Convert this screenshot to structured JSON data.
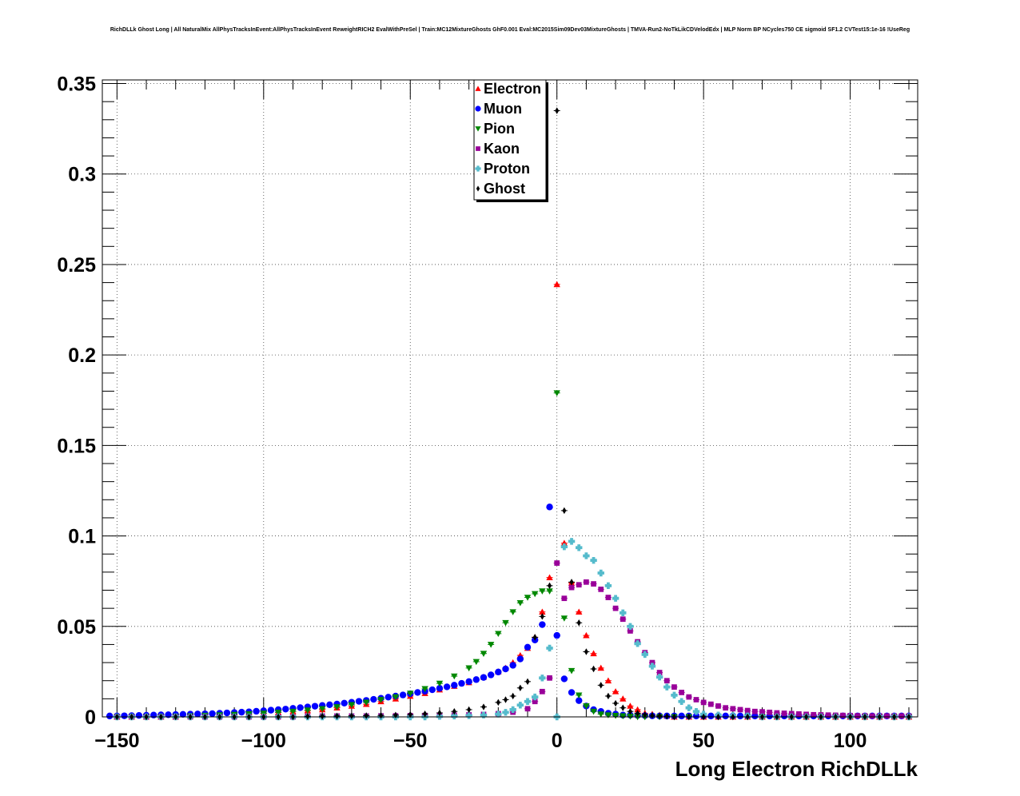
{
  "title": "RichDLLk Ghost Long | All NaturalMix AllPhysTracksInEvent:AllPhysTracksInEvent ReweightRICH2 EvalWithPreSel | Train:MC12MixtureGhosts GhF0.001 Eval:MC2015Sim09Dev03MixtureGhosts | TMVA-Run2-NoTkLikCDVelodEdx | MLP Norm BP NCycles750 CE sigmoid SF1.2 CVTest15:1e-16 !UseReg",
  "chart_data": {
    "type": "scatter",
    "title": "RichDLLk Ghost Long | All NaturalMix AllPhysTracksInEvent:AllPhysTracksInEvent ReweightRICH2 EvalWithPreSel | Train:MC12MixtureGhosts GhF0.001 Eval:MC2015Sim09Dev03MixtureGhosts | TMVA-Run2-NoTkLikCDVelodEdx | MLP Norm BP NCycles750 CE sigmoid SF1.2 CVTest15:1e-16 !UseReg",
    "xlabel": "Long Electron RichDLLk",
    "ylabel": "",
    "xlim": [
      -155,
      123
    ],
    "ylim": [
      0,
      0.352
    ],
    "x_ticks": [
      -150,
      -100,
      -50,
      0,
      50,
      100
    ],
    "x_tick_labels": [
      "−150",
      "−100",
      "−50",
      "0",
      "50",
      "100"
    ],
    "y_ticks": [
      0,
      0.05,
      0.1,
      0.15,
      0.2,
      0.25,
      0.3,
      0.35
    ],
    "y_tick_labels": [
      "0",
      "0.05",
      "0.1",
      "0.15",
      "0.2",
      "0.25",
      "0.3",
      "0.35"
    ],
    "grid": true,
    "legend_position": "top-center",
    "series": [
      {
        "name": "Electron",
        "color": "#ff0000",
        "marker": "triangle-up",
        "x": [
          -150,
          -145,
          -140,
          -135,
          -130,
          -125,
          -120,
          -115,
          -110,
          -105,
          -100,
          -95,
          -90,
          -85,
          -80,
          -75,
          -70,
          -65,
          -60,
          -55,
          -50,
          -45,
          -40,
          -35,
          -30,
          -25,
          -20,
          -17.5,
          -15,
          -12.5,
          -10,
          -7.5,
          -5,
          -2.5,
          0,
          2.5,
          5,
          7.5,
          10,
          12.5,
          15,
          17.5,
          20,
          22.5,
          25,
          27.5,
          30,
          32.5,
          35,
          37.5,
          40,
          45,
          50,
          55,
          60,
          65,
          70,
          75,
          80,
          85,
          90,
          95,
          100,
          105,
          110,
          115,
          120
        ],
        "y": [
          0,
          0,
          0,
          0,
          0,
          0.0005,
          0.0008,
          0.001,
          0.0012,
          0.0015,
          0.002,
          0.0025,
          0.003,
          0.0035,
          0.004,
          0.005,
          0.006,
          0.007,
          0.0085,
          0.01,
          0.0115,
          0.013,
          0.015,
          0.017,
          0.019,
          0.022,
          0.025,
          0.027,
          0.03,
          0.034,
          0.038,
          0.044,
          0.058,
          0.077,
          0.239,
          0.096,
          0.074,
          0.058,
          0.045,
          0.035,
          0.027,
          0.02,
          0.014,
          0.01,
          0.006,
          0.004,
          0.002,
          0.0015,
          0.001,
          0.0005,
          0,
          0,
          0,
          0,
          0,
          0,
          0,
          0,
          0,
          0,
          0,
          0,
          0,
          0,
          0,
          0,
          0
        ]
      },
      {
        "name": "Muon",
        "color": "#0000ff",
        "marker": "circle",
        "x": [
          -152.5,
          -150,
          -147.5,
          -145,
          -142.5,
          -140,
          -137.5,
          -135,
          -132.5,
          -130,
          -127.5,
          -125,
          -122.5,
          -120,
          -117.5,
          -115,
          -112.5,
          -110,
          -107.5,
          -105,
          -102.5,
          -100,
          -97.5,
          -95,
          -92.5,
          -90,
          -87.5,
          -85,
          -82.5,
          -80,
          -77.5,
          -75,
          -72.5,
          -70,
          -67.5,
          -65,
          -62.5,
          -60,
          -57.5,
          -55,
          -52.5,
          -50,
          -47.5,
          -45,
          -42.5,
          -40,
          -37.5,
          -35,
          -32.5,
          -30,
          -27.5,
          -25,
          -22.5,
          -20,
          -17.5,
          -15,
          -12.5,
          -10,
          -7.5,
          -5,
          -2.5,
          0,
          2.5,
          5,
          7.5,
          10,
          12.5,
          15,
          17.5,
          20,
          22.5,
          25,
          27.5,
          30,
          32.5,
          35,
          37.5,
          40,
          42.5,
          45,
          47.5,
          50,
          52.5,
          55,
          57.5,
          60,
          62.5,
          65,
          67.5,
          70,
          72.5,
          75,
          77.5,
          80,
          82.5,
          85,
          87.5,
          90,
          92.5,
          95,
          97.5,
          100,
          102.5,
          105,
          107.5,
          110,
          112.5,
          115,
          117.5,
          120
        ],
        "y": [
          0.0005,
          0.0005,
          0.0006,
          0.0007,
          0.0008,
          0.0009,
          0.001,
          0.0011,
          0.0012,
          0.0013,
          0.0014,
          0.0015,
          0.0016,
          0.0017,
          0.0018,
          0.002,
          0.0022,
          0.0024,
          0.0026,
          0.0028,
          0.0031,
          0.0034,
          0.0037,
          0.004,
          0.0043,
          0.0047,
          0.0051,
          0.0055,
          0.0059,
          0.0063,
          0.0067,
          0.0071,
          0.0076,
          0.0081,
          0.0086,
          0.0091,
          0.0097,
          0.0103,
          0.0109,
          0.0115,
          0.0121,
          0.0128,
          0.0135,
          0.0142,
          0.015,
          0.0158,
          0.0166,
          0.0175,
          0.0185,
          0.0195,
          0.0206,
          0.0218,
          0.0232,
          0.0248,
          0.0265,
          0.0285,
          0.032,
          0.0385,
          0.0425,
          0.051,
          0.116,
          0.045,
          0.021,
          0.0135,
          0.009,
          0.006,
          0.004,
          0.003,
          0.002,
          0.0015,
          0.001,
          0.001,
          0.0008,
          0.0007,
          0.0006,
          0.0005,
          0.0005,
          0.0005,
          0.0005,
          0.0005,
          0.0005,
          0.0005,
          0.0005,
          0.0005,
          0.0005,
          0.0005,
          0.0005,
          0.0005,
          0.0005,
          0.0005,
          0.0005,
          0.0005,
          0.0005,
          0.0005,
          0.0005,
          0.0005,
          0.0005,
          0.0005,
          0.0005,
          0.0005,
          0.0005,
          0.0005,
          0.0005,
          0.0005,
          0.0005,
          0.0005,
          0.0005,
          0.0005,
          0.0005,
          0.0005
        ]
      },
      {
        "name": "Pion",
        "color": "#008800",
        "marker": "triangle-down",
        "x": [
          -150,
          -145,
          -140,
          -135,
          -130,
          -125,
          -120,
          -115,
          -110,
          -105,
          -100,
          -95,
          -90,
          -85,
          -80,
          -75,
          -70,
          -65,
          -60,
          -55,
          -50,
          -45,
          -40,
          -35,
          -30,
          -27.5,
          -25,
          -22.5,
          -20,
          -17.5,
          -15,
          -12.5,
          -10,
          -7.5,
          -5,
          -2.5,
          0,
          2.5,
          5,
          7.5,
          10,
          12.5,
          15,
          17.5,
          20,
          22.5,
          25,
          27.5,
          30,
          35,
          40,
          45,
          50,
          55,
          60,
          65,
          70,
          75,
          80,
          85,
          90,
          95,
          100,
          105,
          110,
          115,
          120
        ],
        "y": [
          0,
          0,
          0,
          0,
          0.0003,
          0.0005,
          0.0008,
          0.001,
          0.0013,
          0.0016,
          0.002,
          0.0025,
          0.003,
          0.0037,
          0.0045,
          0.0055,
          0.0067,
          0.008,
          0.0095,
          0.011,
          0.013,
          0.0155,
          0.0185,
          0.0225,
          0.027,
          0.0305,
          0.035,
          0.04,
          0.046,
          0.052,
          0.058,
          0.063,
          0.066,
          0.068,
          0.0695,
          0.0695,
          0.179,
          0.0545,
          0.0255,
          0.012,
          0.006,
          0.003,
          0.0015,
          0.001,
          0.0007,
          0.0005,
          0.0003,
          0,
          0,
          0,
          0,
          0,
          0,
          0,
          0,
          0,
          0,
          0,
          0,
          0,
          0,
          0,
          0,
          0,
          0,
          0,
          0
        ]
      },
      {
        "name": "Kaon",
        "color": "#990099",
        "marker": "square",
        "x": [
          -150,
          -145,
          -140,
          -135,
          -130,
          -125,
          -120,
          -115,
          -110,
          -105,
          -100,
          -95,
          -90,
          -85,
          -80,
          -75,
          -70,
          -65,
          -60,
          -55,
          -50,
          -45,
          -40,
          -35,
          -30,
          -25,
          -20,
          -15,
          -10,
          -7.5,
          -5,
          -2.5,
          0,
          2.5,
          5,
          7.5,
          10,
          12.5,
          15,
          17.5,
          20,
          22.5,
          25,
          27.5,
          30,
          32.5,
          35,
          37.5,
          40,
          42.5,
          45,
          47.5,
          50,
          52.5,
          55,
          57.5,
          60,
          62.5,
          65,
          67.5,
          70,
          72.5,
          75,
          77.5,
          80,
          82.5,
          85,
          87.5,
          90,
          92.5,
          95,
          97.5,
          100,
          102.5,
          105,
          107.5,
          110,
          112.5,
          115,
          117.5,
          120
        ],
        "y": [
          0,
          0,
          0,
          0,
          0,
          0,
          0,
          0,
          0,
          0,
          0,
          0,
          0,
          0.0005,
          0.0005,
          0.0005,
          0.0005,
          0.0005,
          0.0006,
          0.0006,
          0.0007,
          0.0008,
          0.0009,
          0.001,
          0.0012,
          0.0014,
          0.0018,
          0.0026,
          0.0045,
          0.0085,
          0.014,
          0.0215,
          0.085,
          0.0655,
          0.0715,
          0.073,
          0.0745,
          0.0735,
          0.0705,
          0.066,
          0.06,
          0.054,
          0.0475,
          0.0415,
          0.0355,
          0.03,
          0.0245,
          0.02,
          0.0165,
          0.0135,
          0.011,
          0.0095,
          0.008,
          0.007,
          0.006,
          0.005,
          0.0045,
          0.004,
          0.0035,
          0.003,
          0.0028,
          0.0025,
          0.0022,
          0.002,
          0.0018,
          0.0016,
          0.0014,
          0.0012,
          0.0011,
          0.001,
          0.0009,
          0.0008,
          0.0007,
          0.0006,
          0.0006,
          0.0005,
          0.0005,
          0.0005,
          0.0005,
          0.0005,
          0.0005
        ]
      },
      {
        "name": "Proton",
        "color": "#55bbcc",
        "marker": "cross",
        "x": [
          -150,
          -145,
          -140,
          -135,
          -130,
          -125,
          -120,
          -115,
          -110,
          -105,
          -100,
          -95,
          -90,
          -85,
          -80,
          -75,
          -70,
          -65,
          -60,
          -55,
          -50,
          -45,
          -40,
          -35,
          -30,
          -25,
          -20,
          -17.5,
          -15,
          -12.5,
          -10,
          -7.5,
          -5,
          -2.5,
          0,
          2.5,
          5,
          7.5,
          10,
          12.5,
          15,
          17.5,
          20,
          22.5,
          25,
          27.5,
          30,
          32.5,
          35,
          37.5,
          40,
          42.5,
          45,
          47.5,
          50,
          55,
          60,
          65,
          70,
          75,
          80,
          85,
          90,
          95,
          100,
          105,
          110,
          115,
          120
        ],
        "y": [
          0,
          0,
          0,
          0,
          0,
          0,
          0,
          0,
          0,
          0,
          0,
          0,
          0,
          0,
          0,
          0,
          0,
          0,
          0,
          0,
          0,
          0,
          0.0003,
          0.0005,
          0.0007,
          0.001,
          0.0015,
          0.0025,
          0.004,
          0.0065,
          0.0085,
          0.011,
          0.0215,
          0.038,
          0.0,
          0.094,
          0.097,
          0.0935,
          0.089,
          0.0865,
          0.0795,
          0.0725,
          0.0655,
          0.0575,
          0.05,
          0.0405,
          0.0345,
          0.028,
          0.022,
          0.0165,
          0.012,
          0.0085,
          0.005,
          0.003,
          0.0015,
          0.001,
          0.0007,
          0.0005,
          0,
          0,
          0,
          0,
          0,
          0,
          0,
          0,
          0,
          0,
          0
        ]
      },
      {
        "name": "Ghost",
        "color": "#000000",
        "marker": "diamond",
        "x": [
          -150,
          -145,
          -140,
          -135,
          -130,
          -125,
          -120,
          -115,
          -110,
          -105,
          -100,
          -95,
          -90,
          -85,
          -80,
          -75,
          -70,
          -65,
          -60,
          -55,
          -50,
          -45,
          -40,
          -35,
          -30,
          -25,
          -20,
          -17.5,
          -15,
          -12.5,
          -10,
          -7.5,
          -5,
          -2.5,
          0,
          2.5,
          5,
          7.5,
          10,
          12.5,
          15,
          17.5,
          20,
          22.5,
          25,
          27.5,
          30,
          32.5,
          35,
          37.5,
          40,
          45,
          50,
          55,
          60,
          65,
          70,
          75,
          80,
          85,
          90,
          95,
          100,
          105,
          110,
          115,
          120
        ],
        "y": [
          0,
          0,
          0,
          0,
          0,
          0,
          0,
          0,
          0,
          0,
          0,
          0,
          0,
          0.0003,
          0.0004,
          0.0005,
          0.0006,
          0.0007,
          0.0008,
          0.001,
          0.0013,
          0.0017,
          0.0022,
          0.003,
          0.004,
          0.0055,
          0.008,
          0.0095,
          0.0115,
          0.016,
          0.0195,
          0.044,
          0.0555,
          0.0725,
          0.335,
          0.114,
          0.0745,
          0.052,
          0.036,
          0.0265,
          0.0175,
          0.0115,
          0.0075,
          0.005,
          0.003,
          0.002,
          0.0012,
          0.0008,
          0.0005,
          0.0003,
          0,
          0,
          0,
          0,
          0,
          0,
          0,
          0,
          0,
          0,
          0,
          0,
          0,
          0,
          0,
          0,
          0
        ]
      }
    ]
  }
}
